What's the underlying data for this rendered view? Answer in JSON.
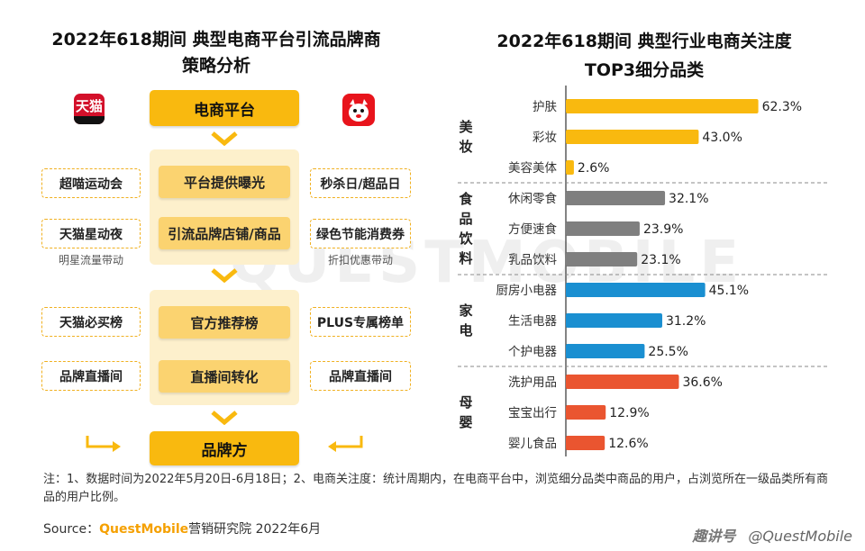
{
  "left": {
    "title_line1": "2022年618期间 典型电商平台引流品牌商",
    "title_line2": "策略分析",
    "tmall_logo_text": "天猫",
    "top_button": "电商平台",
    "inner_buttons": [
      "平台提供曝光",
      "引流品牌店铺/商品",
      "官方推荐榜",
      "直播间转化"
    ],
    "bottom_button": "品牌方",
    "tmall_boxes": [
      "超喵运动会",
      "天猫星动夜",
      "天猫必买榜",
      "品牌直播间"
    ],
    "jd_boxes": [
      "秒杀日/超品日",
      "绿色节能消费券",
      "PLUS专属榜单",
      "品牌直播间"
    ],
    "captions": [
      "明星流量带动",
      "折扣优惠带动"
    ]
  },
  "right": {
    "title_line1": "2022年618期间 典型行业电商关注度",
    "title_line2": "TOP3细分品类"
  },
  "chart_data": {
    "type": "bar",
    "orientation": "horizontal",
    "groups": [
      {
        "name": "美妆",
        "color": "#f9b90f",
        "categories": [
          "护肤",
          "彩妆",
          "美容美体"
        ],
        "values": [
          62.3,
          43.0,
          2.6
        ],
        "labels": [
          "62.3%",
          "43.0%",
          "2.6%"
        ]
      },
      {
        "name": "食品饮料",
        "color": "#7f7f7f",
        "categories": [
          "休闲零食",
          "方便速食",
          "乳品饮料"
        ],
        "values": [
          32.1,
          23.9,
          23.1
        ],
        "labels": [
          "32.1%",
          "23.9%",
          "23.1%"
        ]
      },
      {
        "name": "家电",
        "color": "#1a8fd1",
        "categories": [
          "厨房小电器",
          "生活电器",
          "个护电器"
        ],
        "values": [
          45.1,
          31.2,
          25.5
        ],
        "labels": [
          "45.1%",
          "31.2%",
          "25.5%"
        ]
      },
      {
        "name": "母婴",
        "color": "#ea5530",
        "categories": [
          "洗护用品",
          "宝宝出行",
          "婴儿食品"
        ],
        "values": [
          36.6,
          12.9,
          12.6
        ],
        "labels": [
          "36.6%",
          "12.9%",
          "12.6%"
        ]
      }
    ],
    "xlim": [
      0,
      70
    ],
    "grid": false,
    "legend": "none"
  },
  "footer": {
    "note": "注：1、数据时间为2022年5月20日-6月18日；2、电商关注度：统计周期内，在电商平台中，浏览细分品类中商品的用户，占浏览所在一级品类所有商品的用户比例。",
    "source_prefix": "Source：",
    "source_brand": "QuestMobile",
    "source_suffix": "营销研究院 2022年6月",
    "brand_mark_left": "趣讲号",
    "brand_mark_right": "@QuestMobile"
  },
  "watermark": "QUESTMOBILE",
  "colors": {
    "accent": "#f9b90f",
    "panel": "#fdf0cc"
  }
}
